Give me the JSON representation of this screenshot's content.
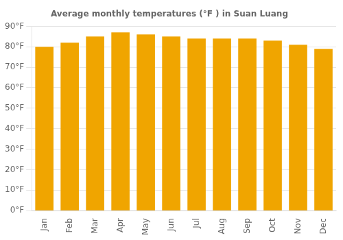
{
  "chart_data": {
    "type": "bar",
    "title": "Average monthly temperatures (°F ) in Suan Luang",
    "categories": [
      "Jan",
      "Feb",
      "Mar",
      "Apr",
      "May",
      "Jun",
      "Jul",
      "Aug",
      "Sep",
      "Oct",
      "Nov",
      "Dec"
    ],
    "values": [
      80,
      82,
      85,
      87,
      86,
      85,
      84,
      84,
      84,
      83,
      81,
      79
    ],
    "color": "#F0A500",
    "ylim": [
      0,
      90
    ],
    "yticks": [
      {
        "value": 0,
        "label": "0°F"
      },
      {
        "value": 10,
        "label": "10°F"
      },
      {
        "value": 20,
        "label": "20°F"
      },
      {
        "value": 30,
        "label": "30°F"
      },
      {
        "value": 40,
        "label": "40°F"
      },
      {
        "value": 50,
        "label": "50°F"
      },
      {
        "value": 60,
        "label": "60°F"
      },
      {
        "value": 70,
        "label": "70°F"
      },
      {
        "value": 80,
        "label": "80°F"
      },
      {
        "value": 90,
        "label": "90°F"
      }
    ],
    "grid": true
  }
}
